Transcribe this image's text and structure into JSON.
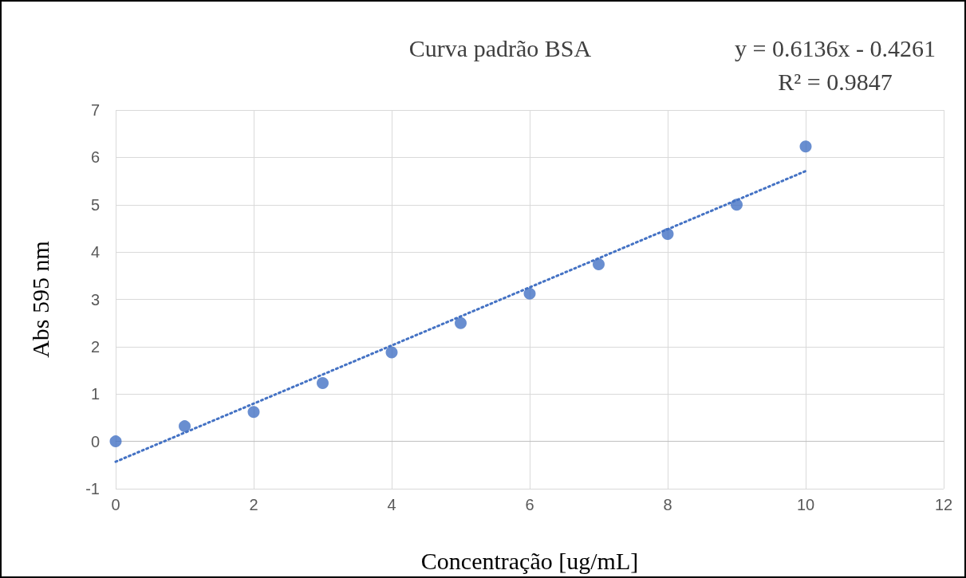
{
  "chart_data": {
    "type": "scatter",
    "title": "Curva padrão BSA",
    "xlabel": "Concentração [ug/mL]",
    "ylabel": "Abs 595 nm",
    "annotations": [
      "y = 0.6136x - 0.4261",
      "R² = 0.9847"
    ],
    "x": [
      0,
      1,
      2,
      3,
      4,
      5,
      6,
      7,
      8,
      9,
      10
    ],
    "series": [
      {
        "color": "#4472c4",
        "values": [
          0,
          0.32,
          0.62,
          1.23,
          1.88,
          2.5,
          3.12,
          3.74,
          4.38,
          5.0,
          6.23
        ]
      },
      {
        "type": "line",
        "color": "#4472c4",
        "x": [
          0,
          10
        ],
        "values": [
          -0.43,
          5.71
        ],
        "line_style": "dotted",
        "marker": "none"
      }
    ],
    "marker": "circle",
    "xlim": [
      0,
      12
    ],
    "xticks": [
      0,
      2,
      4,
      6,
      8,
      10,
      12
    ],
    "ylim": [
      -1,
      7
    ],
    "yticks": [
      -1,
      0,
      1,
      2,
      3,
      4,
      5,
      6,
      7
    ],
    "grid": true
  }
}
